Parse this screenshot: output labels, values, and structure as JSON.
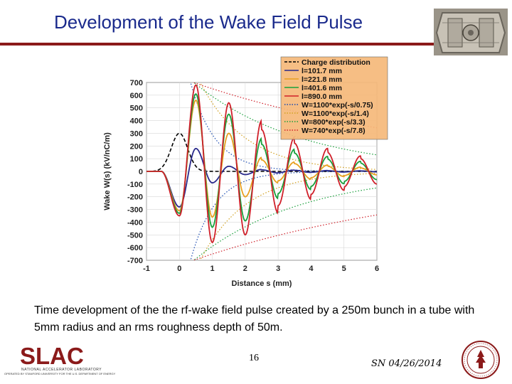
{
  "slide": {
    "title": "Development of the Wake Field Pulse",
    "caption": "Time development of the the rf-wake field pulse created by a 250m bunch in a tube with 5mm radius and an rms roughness depth of 50m.",
    "page_number": "16",
    "footer_date": "SN 04/26/2014",
    "logo_text": "SLAC",
    "logo_subtitle": "NATIONAL ACCELERATOR LABORATORY",
    "logo_operated_by": "OPERATED BY STANFORD UNIVERSITY FOR THE U.S. DEPARTMENT OF ENERGY"
  },
  "chart_data": {
    "type": "line",
    "xlabel": "Distance s (mm)",
    "ylabel": "Wake W(s) (kV/nC/m)",
    "xlim": [
      -1,
      6
    ],
    "ylim": [
      -700,
      700
    ],
    "xticks": [
      -1,
      0,
      1,
      2,
      3,
      4,
      5,
      6
    ],
    "yticks": [
      -700,
      -600,
      -500,
      -400,
      -300,
      -200,
      -100,
      0,
      100,
      200,
      300,
      400,
      500,
      600,
      700
    ],
    "grid": true,
    "legend_position": "top-right",
    "legend_background": "#f5b87a",
    "charge_distribution": {
      "name": "Charge distribution",
      "color": "#000000",
      "center": 0,
      "sigma": 0.25,
      "peak": 300
    },
    "series": [
      {
        "name": "l=101.7 mm",
        "color": "#2a2a8c",
        "first_min": -280,
        "amplitudes": [
          -280,
          180,
          -90,
          40,
          -25,
          15
        ],
        "frequency": 0.5
      },
      {
        "name": "l=221.8 mm",
        "color": "#e8a020",
        "first_min": -310,
        "amplitudes": [
          -310,
          560,
          -360,
          300,
          -200,
          110
        ],
        "frequency": 0.5
      },
      {
        "name": "l=401.6 mm",
        "color": "#1aa03c",
        "first_min": -330,
        "amplitudes": [
          -330,
          610,
          -440,
          450,
          -390,
          260
        ],
        "frequency": 0.5
      },
      {
        "name": "l=890.0 mm",
        "color": "#d0202a",
        "first_min": -350,
        "amplitudes": [
          -350,
          680,
          -560,
          540,
          -500,
          400
        ],
        "frequency": 0.5
      }
    ],
    "envelopes": [
      {
        "name": "W=1100*exp(-s/0.75)",
        "A": 1100,
        "tau": 0.75,
        "color": "#1a4ab0"
      },
      {
        "name": "W=1100*exp(-s/1.4)",
        "A": 1100,
        "tau": 1.4,
        "color": "#d2a020"
      },
      {
        "name": "W=800*exp(-s/3.3)",
        "A": 800,
        "tau": 3.3,
        "color": "#1aa03c"
      },
      {
        "name": "W=740*exp(-s/7.8)",
        "A": 740,
        "tau": 7.8,
        "color": "#d0202a"
      }
    ]
  }
}
